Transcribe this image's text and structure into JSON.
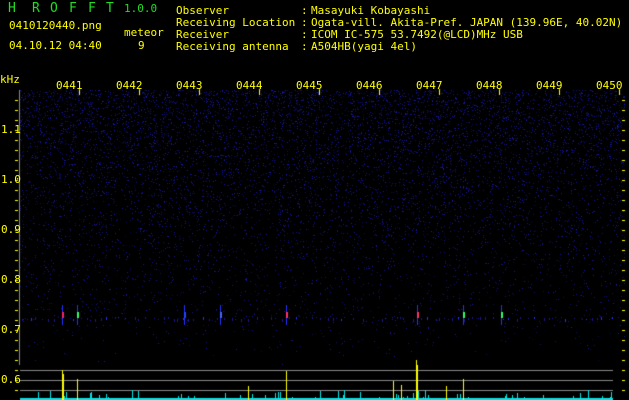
{
  "app": {
    "name_letters": [
      "H",
      "R",
      "O",
      "F",
      "F",
      "T"
    ],
    "version": "1.0.0"
  },
  "file": {
    "name": "0410120440.png",
    "datetime": "04.10.12 04:40"
  },
  "meteor": {
    "label": "meteor",
    "count": "9"
  },
  "info": [
    {
      "label": "Observer",
      "sep": ":",
      "value": "Masayuki Kobayashi"
    },
    {
      "label": "Receiving Location",
      "sep": ":",
      "value": "Ogata-vill. Akita-Pref. JAPAN (139.96E, 40.02N)"
    },
    {
      "label": "Receiver",
      "sep": ":",
      "value": "ICOM IC-575 53.7492(@LCD)MHz USB"
    },
    {
      "label": "Receiving antenna",
      "sep": ":",
      "value": "A504HB(yagi 4el)"
    }
  ],
  "axis": {
    "y_unit": "kHz",
    "y_ticks": [
      "1.1",
      "1.0",
      "0.9",
      "0.8",
      "0.7",
      "0.6"
    ],
    "x_ticks": [
      "0441",
      "0442",
      "0443",
      "0444",
      "0445",
      "0446",
      "0447",
      "0448",
      "0449",
      "0450"
    ]
  },
  "colors": {
    "text": "#ffff00",
    "logo": "#22dd22",
    "background": "#000000",
    "noise": "#1a1a8a",
    "echo_bar": "#ffff00",
    "level_bar": "#00e5e5",
    "guide_line": "#888888"
  }
}
